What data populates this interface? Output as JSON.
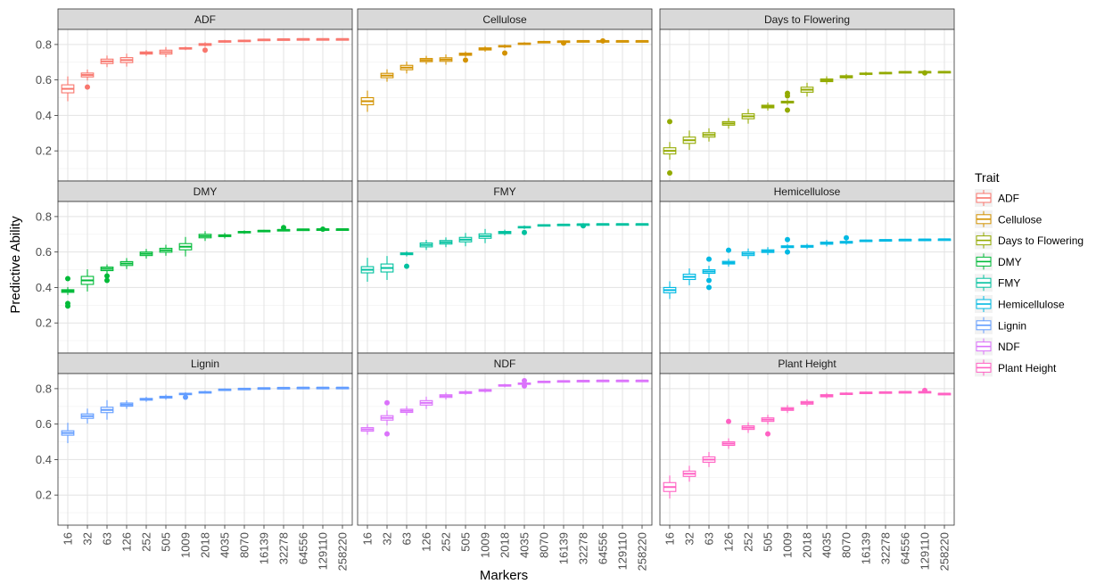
{
  "chart_data": {
    "type": "boxplot",
    "xlabel": "Markers",
    "ylabel": "Predictive Ability",
    "ylim": [
      0.03,
      0.885
    ],
    "y_ticks": [
      0.2,
      0.4,
      0.6,
      0.8
    ],
    "y_tick_labels": [
      "0.2",
      "0.4",
      "0.6",
      "0.8"
    ],
    "categories": [
      "16",
      "32",
      "63",
      "126",
      "252",
      "505",
      "1009",
      "2018",
      "4035",
      "8070",
      "16139",
      "32278",
      "64556",
      "129110",
      "258220"
    ],
    "legend": {
      "title": "Trait",
      "position": "right",
      "entries": [
        "ADF",
        "Cellulose",
        "Days to Flowering",
        "DMY",
        "FMY",
        "Hemicellulose",
        "Lignin",
        "NDF",
        "Plant Height"
      ]
    },
    "colors": {
      "ADF": "#F8766D",
      "Cellulose": "#D39200",
      "Days to Flowering": "#93AA00",
      "DMY": "#00BA38",
      "FMY": "#00C19F",
      "Hemicellulose": "#00B9E3",
      "Lignin": "#619CFF",
      "NDF": "#DB72FB",
      "Plant Height": "#FF61C3"
    },
    "series": [
      {
        "name": "ADF",
        "median": [
          0.55,
          0.628,
          0.705,
          0.712,
          0.752,
          0.757,
          0.778,
          0.8,
          0.818,
          0.822,
          0.828,
          0.83,
          0.831,
          0.831,
          0.831
        ],
        "spread": [
          0.045,
          0.022,
          0.025,
          0.028,
          0.012,
          0.022,
          0.008,
          0.01,
          0.006,
          0.004,
          0.003,
          0.002,
          0.002,
          0.002,
          0.002
        ],
        "whisk": [
          0.095,
          0.04,
          0.04,
          0.045,
          0.02,
          0.035,
          0.012,
          0.016,
          0.01,
          0.007,
          0.005,
          0.004,
          0.003,
          0.003,
          0.003
        ],
        "outliers": [
          [],
          [
            0.56
          ],
          [],
          [],
          [],
          [],
          [],
          [
            0.768
          ],
          [],
          [],
          [],
          [],
          [],
          [],
          []
        ]
      },
      {
        "name": "Cellulose",
        "median": [
          0.48,
          0.625,
          0.67,
          0.712,
          0.715,
          0.745,
          0.775,
          0.79,
          0.805,
          0.815,
          0.818,
          0.82,
          0.82,
          0.82,
          0.82
        ],
        "spread": [
          0.04,
          0.025,
          0.025,
          0.018,
          0.02,
          0.012,
          0.012,
          0.008,
          0.006,
          0.004,
          0.003,
          0.002,
          0.002,
          0.002,
          0.002
        ],
        "whisk": [
          0.08,
          0.045,
          0.042,
          0.03,
          0.038,
          0.02,
          0.02,
          0.013,
          0.01,
          0.007,
          0.005,
          0.004,
          0.003,
          0.003,
          0.003
        ],
        "outliers": [
          [],
          [],
          [],
          [],
          [],
          [
            0.712
          ],
          [],
          [
            0.752
          ],
          [],
          [],
          [
            0.808
          ],
          [],
          [
            0.82
          ],
          [],
          []
        ]
      },
      {
        "name": "Days to Flowering",
        "median": [
          0.2,
          0.26,
          0.29,
          0.355,
          0.395,
          0.45,
          0.475,
          0.545,
          0.598,
          0.618,
          0.635,
          0.64,
          0.645,
          0.646,
          0.646
        ],
        "spread": [
          0.035,
          0.035,
          0.025,
          0.02,
          0.028,
          0.015,
          0.01,
          0.028,
          0.015,
          0.012,
          0.008,
          0.005,
          0.004,
          0.003,
          0.003
        ],
        "whisk": [
          0.065,
          0.075,
          0.05,
          0.04,
          0.055,
          0.03,
          0.022,
          0.05,
          0.03,
          0.02,
          0.014,
          0.008,
          0.006,
          0.005,
          0.005
        ],
        "outliers": [
          [
            0.365,
            0.075
          ],
          [],
          [],
          [],
          [],
          [],
          [
            0.525,
            0.51,
            0.43
          ],
          [],
          [],
          [],
          [],
          [],
          [],
          [
            0.64
          ],
          []
        ]
      },
      {
        "name": "DMY",
        "median": [
          0.38,
          0.44,
          0.505,
          0.535,
          0.59,
          0.61,
          0.63,
          0.69,
          0.692,
          0.712,
          0.72,
          0.725,
          0.728,
          0.729,
          0.729
        ],
        "spread": [
          0.015,
          0.045,
          0.02,
          0.022,
          0.02,
          0.022,
          0.035,
          0.02,
          0.01,
          0.008,
          0.004,
          0.003,
          0.002,
          0.002,
          0.002
        ],
        "whisk": [
          0.03,
          0.08,
          0.03,
          0.04,
          0.035,
          0.04,
          0.075,
          0.035,
          0.022,
          0.012,
          0.006,
          0.005,
          0.003,
          0.003,
          0.003
        ],
        "outliers": [
          [
            0.45,
            0.31,
            0.295
          ],
          [],
          [
            0.465,
            0.44
          ],
          [],
          [],
          [],
          [],
          [],
          [],
          [],
          [],
          [
            0.738
          ],
          [],
          [
            0.729
          ],
          []
        ]
      },
      {
        "name": "FMY",
        "median": [
          0.5,
          0.51,
          0.59,
          0.64,
          0.655,
          0.67,
          0.69,
          0.71,
          0.74,
          0.752,
          0.755,
          0.757,
          0.758,
          0.758,
          0.758
        ],
        "spread": [
          0.035,
          0.045,
          0.01,
          0.022,
          0.02,
          0.025,
          0.025,
          0.012,
          0.008,
          0.004,
          0.003,
          0.002,
          0.002,
          0.002,
          0.002
        ],
        "whisk": [
          0.1,
          0.09,
          0.02,
          0.035,
          0.035,
          0.05,
          0.055,
          0.02,
          0.012,
          0.006,
          0.005,
          0.004,
          0.003,
          0.003,
          0.003
        ],
        "outliers": [
          [],
          [],
          [
            0.52
          ],
          [],
          [],
          [],
          [],
          [],
          [
            0.71
          ],
          [],
          [],
          [
            0.748
          ],
          [],
          [],
          []
        ]
      },
      {
        "name": "Hemicellulose",
        "median": [
          0.385,
          0.46,
          0.49,
          0.54,
          0.59,
          0.605,
          0.63,
          0.632,
          0.65,
          0.655,
          0.665,
          0.668,
          0.67,
          0.671,
          0.672
        ],
        "spread": [
          0.03,
          0.03,
          0.02,
          0.015,
          0.02,
          0.015,
          0.01,
          0.01,
          0.012,
          0.01,
          0.004,
          0.003,
          0.002,
          0.002,
          0.002
        ],
        "whisk": [
          0.07,
          0.065,
          0.045,
          0.03,
          0.04,
          0.03,
          0.02,
          0.02,
          0.025,
          0.018,
          0.006,
          0.005,
          0.003,
          0.003,
          0.003
        ],
        "outliers": [
          [],
          [],
          [
            0.56,
            0.44,
            0.4
          ],
          [
            0.61
          ],
          [],
          [],
          [
            0.67,
            0.6
          ],
          [],
          [],
          [
            0.68
          ],
          [],
          [],
          [],
          [],
          []
        ]
      },
      {
        "name": "Lignin",
        "median": [
          0.55,
          0.645,
          0.68,
          0.71,
          0.74,
          0.752,
          0.77,
          0.78,
          0.795,
          0.8,
          0.803,
          0.805,
          0.806,
          0.806,
          0.806
        ],
        "spread": [
          0.025,
          0.025,
          0.03,
          0.018,
          0.01,
          0.01,
          0.008,
          0.006,
          0.005,
          0.003,
          0.003,
          0.002,
          0.002,
          0.002,
          0.002
        ],
        "whisk": [
          0.09,
          0.06,
          0.08,
          0.03,
          0.018,
          0.02,
          0.012,
          0.01,
          0.008,
          0.005,
          0.004,
          0.003,
          0.003,
          0.003,
          0.003
        ],
        "outliers": [
          [],
          [],
          [],
          [],
          [],
          [],
          [
            0.752
          ],
          [],
          [],
          [],
          [],
          [],
          [],
          [],
          []
        ]
      },
      {
        "name": "NDF",
        "median": [
          0.57,
          0.635,
          0.675,
          0.72,
          0.758,
          0.778,
          0.79,
          0.818,
          0.828,
          0.84,
          0.843,
          0.845,
          0.846,
          0.846,
          0.846
        ],
        "spread": [
          0.02,
          0.025,
          0.018,
          0.025,
          0.015,
          0.01,
          0.01,
          0.008,
          0.008,
          0.004,
          0.003,
          0.002,
          0.002,
          0.002,
          0.002
        ],
        "whisk": [
          0.04,
          0.06,
          0.035,
          0.045,
          0.025,
          0.018,
          0.015,
          0.012,
          0.015,
          0.006,
          0.005,
          0.004,
          0.003,
          0.003,
          0.003
        ],
        "outliers": [
          [],
          [
            0.72,
            0.545
          ],
          [],
          [],
          [],
          [],
          [],
          [],
          [
            0.845,
            0.815
          ],
          [],
          [],
          [],
          [],
          [],
          []
        ]
      },
      {
        "name": "Plant Height",
        "median": [
          0.245,
          0.32,
          0.4,
          0.49,
          0.58,
          0.625,
          0.685,
          0.72,
          0.76,
          0.772,
          0.778,
          0.78,
          0.782,
          0.782,
          0.772
        ],
        "spread": [
          0.05,
          0.03,
          0.03,
          0.02,
          0.02,
          0.02,
          0.015,
          0.015,
          0.012,
          0.006,
          0.004,
          0.003,
          0.002,
          0.003,
          0.002
        ],
        "whisk": [
          0.08,
          0.06,
          0.055,
          0.04,
          0.04,
          0.035,
          0.03,
          0.025,
          0.02,
          0.01,
          0.006,
          0.005,
          0.003,
          0.006,
          0.003
        ],
        "outliers": [
          [],
          [],
          [],
          [
            0.615
          ],
          [],
          [
            0.545
          ],
          [],
          [],
          [],
          [],
          [],
          [],
          [],
          [
            0.79
          ],
          []
        ]
      }
    ]
  }
}
